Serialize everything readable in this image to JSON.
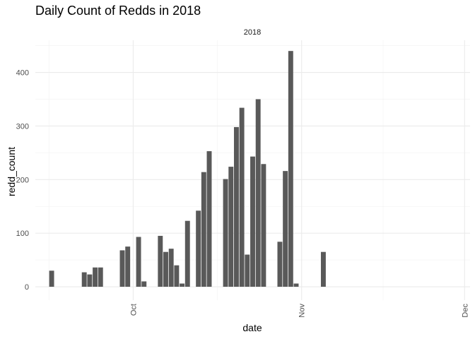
{
  "chart_data": {
    "type": "bar",
    "title": "Daily Count of Redds in 2018",
    "facet_label": "2018",
    "xlabel": "date",
    "ylabel": "redd_count",
    "x_tick_labels": [
      "Oct",
      "Nov",
      "Dec"
    ],
    "x_ticks": [
      "2018-10-01",
      "2018-11-01",
      "2018-12-01"
    ],
    "xlim": [
      "2018-09-13",
      "2018-12-02"
    ],
    "ylim": [
      -25,
      460
    ],
    "y_ticks": [
      0,
      100,
      200,
      300,
      400
    ],
    "grid": true,
    "bar_color": "#595959",
    "x": [
      "2018-09-16",
      "2018-09-22",
      "2018-09-23",
      "2018-09-24",
      "2018-09-25",
      "2018-09-29",
      "2018-09-30",
      "2018-10-02",
      "2018-10-03",
      "2018-10-06",
      "2018-10-07",
      "2018-10-08",
      "2018-10-09",
      "2018-10-10",
      "2018-10-11",
      "2018-10-13",
      "2018-10-14",
      "2018-10-15",
      "2018-10-18",
      "2018-10-19",
      "2018-10-20",
      "2018-10-21",
      "2018-10-22",
      "2018-10-23",
      "2018-10-24",
      "2018-10-25",
      "2018-10-28",
      "2018-10-29",
      "2018-10-30",
      "2018-10-31",
      "2018-11-05",
      "2018-11-06",
      "2018-11-21",
      "2018-11-30"
    ],
    "values": [
      30,
      27,
      23,
      36,
      36,
      68,
      75,
      93,
      10,
      95,
      65,
      71,
      40,
      6,
      123,
      142,
      214,
      253,
      201,
      224,
      298,
      334,
      60,
      243,
      350,
      229,
      84,
      216,
      440,
      6,
      65,
      0,
      0,
      0
    ]
  }
}
